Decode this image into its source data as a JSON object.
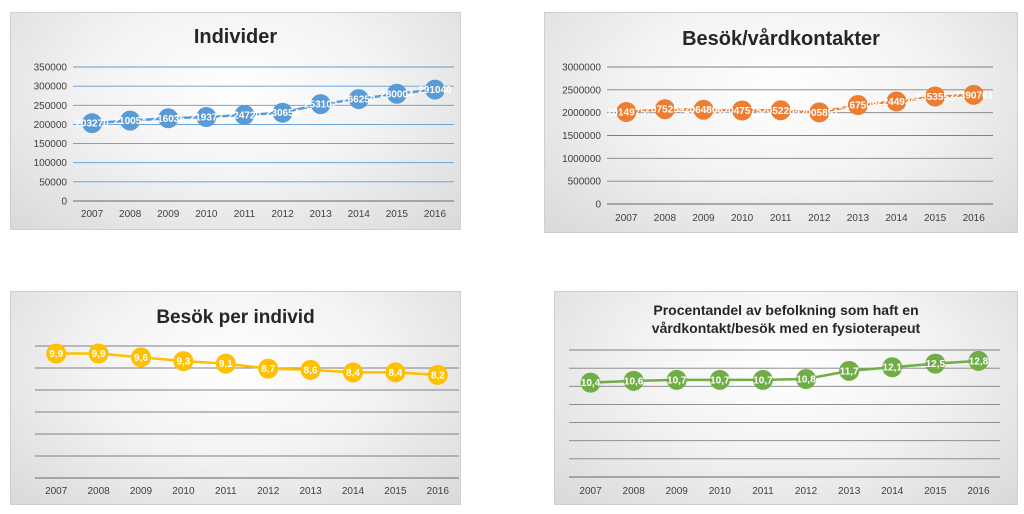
{
  "chart_data": [
    {
      "type": "line",
      "title": "Individer",
      "xlabel": "",
      "ylabel": "",
      "categories": [
        "2007",
        "2008",
        "2009",
        "2010",
        "2011",
        "2012",
        "2013",
        "2014",
        "2015",
        "2016"
      ],
      "values": [
        203270,
        210054,
        216035,
        219373,
        224720,
        230654,
        253102,
        266250,
        280004,
        291040
      ],
      "value_labels": [
        "203270",
        "210054",
        "216035",
        "219373",
        "224720",
        "230654",
        "253102",
        "266250",
        "280004",
        "291040"
      ],
      "ylim": [
        0,
        350000
      ],
      "yticks": [
        0,
        50000,
        100000,
        150000,
        200000,
        250000,
        300000,
        350000
      ],
      "ytick_labels": [
        "0",
        "50000",
        "100000",
        "150000",
        "200000",
        "250000",
        "300000",
        "350000"
      ],
      "grid": true,
      "color": "#5b9bd5",
      "gridcolor": "#5b9bd5"
    },
    {
      "type": "line",
      "title": "Besök/vårdkontakter",
      "xlabel": "",
      "ylabel": "",
      "categories": [
        "2007",
        "2008",
        "2009",
        "2010",
        "2011",
        "2012",
        "2013",
        "2014",
        "2015",
        "2016"
      ],
      "values": [
        2014975,
        2075259,
        2064806,
        2047575,
        2052284,
        2005851,
        2167508,
        2244936,
        2353553,
        2390761
      ],
      "value_labels": [
        "2014975",
        "2075259",
        "2064806",
        "2047575",
        "2052284",
        "2005851",
        "2167508",
        "2244936",
        "2353553",
        "2390761"
      ],
      "ylim": [
        0,
        3000000
      ],
      "yticks": [
        0,
        500000,
        1000000,
        1500000,
        2000000,
        2500000,
        3000000
      ],
      "ytick_labels": [
        "0",
        "500000",
        "1000000",
        "1500000",
        "2000000",
        "2500000",
        "3000000"
      ],
      "grid": true,
      "color": "#ed7d31",
      "gridcolor": "#808080"
    },
    {
      "type": "line",
      "title": "Besök per individ",
      "xlabel": "",
      "ylabel": "",
      "categories": [
        "2007",
        "2008",
        "2009",
        "2010",
        "2011",
        "2012",
        "2013",
        "2014",
        "2015",
        "2016"
      ],
      "values": [
        9.9,
        9.9,
        9.6,
        9.3,
        9.1,
        8.7,
        8.6,
        8.4,
        8.4,
        8.2
      ],
      "value_labels": [
        "9,9",
        "9,9",
        "9,6",
        "9,3",
        "9,1",
        "8,7",
        "8,6",
        "8,4",
        "8,4",
        "8,2"
      ],
      "ylim": [
        0,
        10.5
      ],
      "gridlines": 6,
      "grid": true,
      "color": "#ffc000",
      "gridcolor": "#808080"
    },
    {
      "type": "line",
      "title": "Procentandel av befolkning som haft en vårdkontakt/besök  med en fysioterapeut",
      "title_lines": [
        "Procentandel av befolkning som haft en",
        "vårdkontakt/besök  med en fysioterapeut"
      ],
      "xlabel": "",
      "ylabel": "",
      "categories": [
        "2007",
        "2008",
        "2009",
        "2010",
        "2011",
        "2012",
        "2013",
        "2014",
        "2015",
        "2016"
      ],
      "values": [
        10.4,
        10.6,
        10.7,
        10.7,
        10.7,
        10.8,
        11.7,
        12.1,
        12.5,
        12.8
      ],
      "value_labels": [
        "10,4",
        "10,6",
        "10,7",
        "10,7",
        "10,7",
        "10,8",
        "11,7",
        "12,1",
        "12,5",
        "12,8"
      ],
      "ylim": [
        0,
        14
      ],
      "gridlines": 7,
      "grid": true,
      "color": "#70ad47",
      "gridcolor": "#808080"
    }
  ]
}
